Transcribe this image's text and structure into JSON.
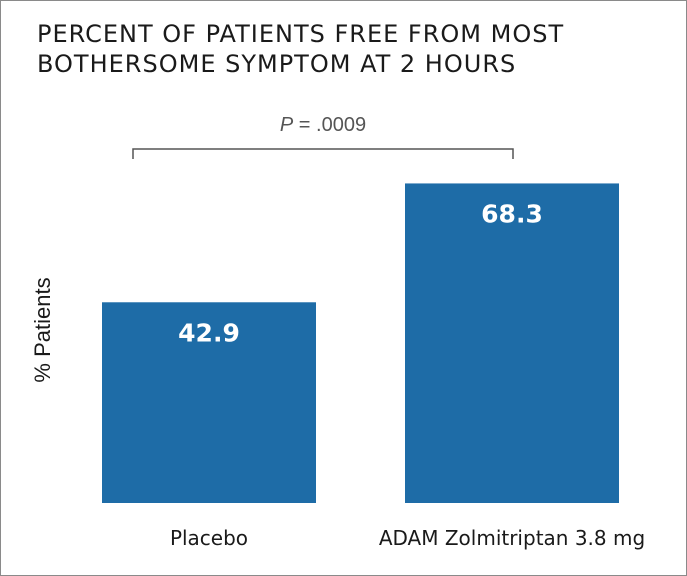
{
  "title_lines": [
    "PERCENT OF PATIENTS FREE FROM MOST",
    "BOTHERSOME SYMPTOM AT 2 HOURS"
  ],
  "colors": {
    "bar": "#1e6ca7",
    "bar_label": "#ffffff",
    "text": "#1a1a1a",
    "annotation": "#555555"
  },
  "chart_data": {
    "type": "bar",
    "title": "PERCENT OF PATIENTS FREE FROM MOST BOTHERSOME SYMPTOM AT 2 HOURS",
    "categories": [
      "Placebo",
      "ADAM Zolmitriptan 3.8 mg"
    ],
    "values": [
      42.9,
      68.3
    ],
    "data_labels": [
      "42.9",
      "68.3"
    ],
    "xlabel": "",
    "ylabel": "% Patients",
    "ylim": [
      0,
      82.5
    ],
    "grid": false,
    "legend": "none",
    "annotations": [
      {
        "type": "significance-bracket",
        "between": [
          "Placebo",
          "ADAM Zolmitriptan 3.8 mg"
        ],
        "p_prefix": "P",
        "p_rest": " = .0009"
      }
    ]
  }
}
